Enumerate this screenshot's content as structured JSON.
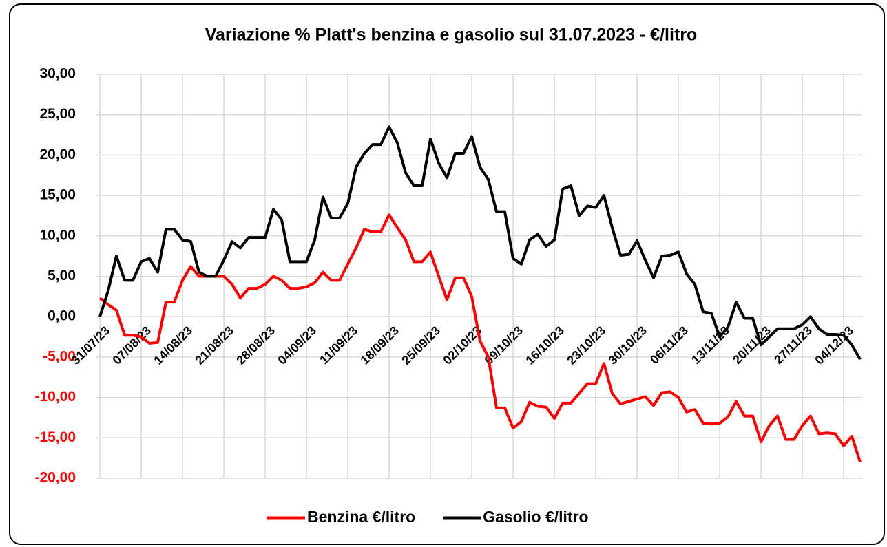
{
  "chart_data": {
    "type": "line",
    "title": "Variazione % Platt's benzina e gasolio sul 31.07.2023 - €/litro",
    "categories": [
      "31/07/23",
      null,
      null,
      null,
      null,
      "07/08/23",
      null,
      null,
      null,
      null,
      "14/08/23",
      null,
      null,
      null,
      null,
      "21/08/23",
      null,
      null,
      null,
      null,
      "28/08/23",
      null,
      null,
      null,
      null,
      "04/09/23",
      null,
      null,
      null,
      null,
      "11/09/23",
      null,
      null,
      null,
      null,
      "18/09/23",
      null,
      null,
      null,
      null,
      "25/09/23",
      null,
      null,
      null,
      null,
      "02/10/23",
      null,
      null,
      null,
      null,
      "09/10/23",
      null,
      null,
      null,
      null,
      "16/10/23",
      null,
      null,
      null,
      null,
      "23/10/23",
      null,
      null,
      null,
      null,
      "30/10/23",
      null,
      null,
      null,
      null,
      "06/11/23",
      null,
      null,
      null,
      null,
      "13/11/23",
      null,
      null,
      null,
      null,
      "20/11/23",
      null,
      null,
      null,
      null,
      "27/11/23",
      null,
      null,
      null,
      null,
      "04/12/23",
      null,
      null
    ],
    "series": [
      {
        "name": "Benzina €/litro",
        "color": "#ff0000",
        "values": [
          2.3,
          1.5,
          0.8,
          -2.3,
          -2.3,
          -2.5,
          -3.3,
          -3.2,
          1.8,
          1.8,
          4.5,
          6.2,
          5,
          5,
          5,
          5,
          4,
          2.3,
          3.5,
          3.5,
          4,
          5,
          4.5,
          3.5,
          3.5,
          3.7,
          4.2,
          5.5,
          4.5,
          4.5,
          6.5,
          8.5,
          10.8,
          10.5,
          10.5,
          12.6,
          11,
          9.5,
          6.8,
          6.8,
          8,
          5,
          2.1,
          4.8,
          4.8,
          2.5,
          -3,
          -5,
          -11.3,
          -11.3,
          -13.8,
          -13,
          -10.6,
          -11.1,
          -11.2,
          -12.6,
          -10.7,
          -10.7,
          -9.5,
          -8.3,
          -8.3,
          -5.8,
          -9.5,
          -10.8,
          -10.5,
          -10.2,
          -9.9,
          -11,
          -9.4,
          -9.3,
          -10,
          -11.8,
          -11.5,
          -13.2,
          -13.3,
          -13.2,
          -12.4,
          -10.5,
          -12.3,
          -12.3,
          -15.5,
          -13.5,
          -12.3,
          -15.2,
          -15.2,
          -13.5,
          -12.3,
          -14.5,
          -14.4,
          -14.5,
          -16,
          -14.8,
          -18
        ]
      },
      {
        "name": "Gasolio €/litro",
        "color": "#000000",
        "values": [
          0,
          3.2,
          7.5,
          4.5,
          4.5,
          6.8,
          7.2,
          5.5,
          10.8,
          10.8,
          9.5,
          9.3,
          5.5,
          5,
          5,
          7,
          9.3,
          8.5,
          9.8,
          9.8,
          9.8,
          13.3,
          12,
          6.8,
          6.8,
          6.8,
          9.5,
          14.8,
          12.2,
          12.2,
          14,
          18.5,
          20.2,
          21.3,
          21.3,
          23.5,
          21.5,
          17.8,
          16.2,
          16.2,
          22,
          19,
          17.2,
          20.2,
          20.2,
          22.3,
          18.5,
          17,
          13,
          13,
          7.2,
          6.5,
          9.5,
          10.2,
          8.7,
          9.5,
          15.8,
          16.2,
          12.5,
          13.7,
          13.5,
          15,
          11,
          7.6,
          7.7,
          9.4,
          7,
          4.8,
          7.5,
          7.6,
          8,
          5.3,
          4,
          0.6,
          0.4,
          -2.5,
          -1.3,
          1.8,
          -0.2,
          -0.2,
          -3.5,
          -2.5,
          -1.5,
          -1.5,
          -1.5,
          -1,
          0,
          -1.5,
          -2.2,
          -2.2,
          -2.3,
          -3.5,
          -5.3
        ]
      }
    ],
    "ylim": [
      -20,
      30
    ],
    "yticks": [
      {
        "value": -20,
        "label": "-20,00"
      },
      {
        "value": -15,
        "label": "-15,00"
      },
      {
        "value": -10,
        "label": "-10,00"
      },
      {
        "value": -5,
        "label": "-5,00"
      },
      {
        "value": 0,
        "label": "0,00"
      },
      {
        "value": 5,
        "label": "5,00"
      },
      {
        "value": 10,
        "label": "10,00"
      },
      {
        "value": 15,
        "label": "15,00"
      },
      {
        "value": 20,
        "label": "20,00"
      },
      {
        "value": 25,
        "label": "25,00"
      },
      {
        "value": 30,
        "label": "30,00"
      }
    ],
    "grid": true,
    "legend": "bottom",
    "negative_tick_color": "#ff0000"
  }
}
